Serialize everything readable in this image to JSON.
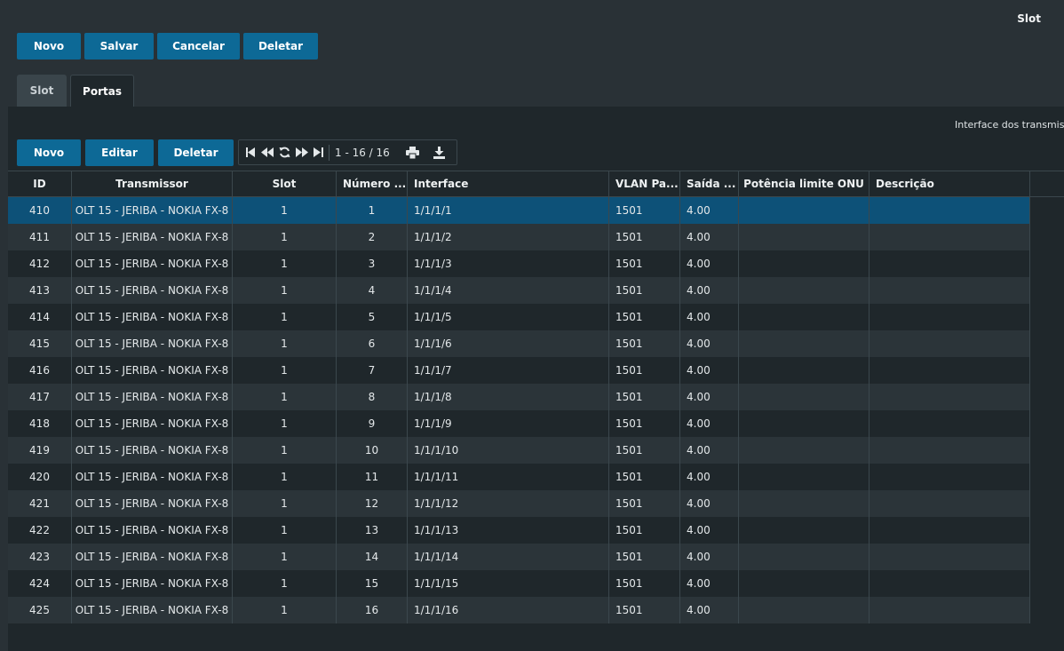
{
  "window": {
    "title": "Slot"
  },
  "toolbar": {
    "novo": "Novo",
    "salvar": "Salvar",
    "cancelar": "Cancelar",
    "deletar": "Deletar"
  },
  "tabs": [
    {
      "label": "Slot"
    },
    {
      "label": "Portas"
    }
  ],
  "hint": "Interface dos transmissores",
  "grid_toolbar": {
    "novo": "Novo",
    "editar": "Editar",
    "deletar": "Deletar"
  },
  "pager": {
    "status": "1 - 16 / 16",
    "icons": [
      "first-page-icon",
      "prev-page-icon",
      "refresh-icon",
      "next-page-icon",
      "last-page-icon",
      "print-icon",
      "download-icon"
    ]
  },
  "table": {
    "columns": [
      "ID",
      "Transmissor",
      "Slot",
      "Número ...",
      "Interface",
      "VLAN Pa...",
      "Saída ...",
      "Potência limite ONU",
      "Descrição"
    ],
    "rows": [
      [
        "410",
        "OLT 15 - JERIBA - NOKIA FX-8",
        "1",
        "1",
        "1/1/1/1",
        "1501",
        "4.00",
        "",
        ""
      ],
      [
        "411",
        "OLT 15 - JERIBA - NOKIA FX-8",
        "1",
        "2",
        "1/1/1/2",
        "1501",
        "4.00",
        "",
        ""
      ],
      [
        "412",
        "OLT 15 - JERIBA - NOKIA FX-8",
        "1",
        "3",
        "1/1/1/3",
        "1501",
        "4.00",
        "",
        ""
      ],
      [
        "413",
        "OLT 15 - JERIBA - NOKIA FX-8",
        "1",
        "4",
        "1/1/1/4",
        "1501",
        "4.00",
        "",
        ""
      ],
      [
        "414",
        "OLT 15 - JERIBA - NOKIA FX-8",
        "1",
        "5",
        "1/1/1/5",
        "1501",
        "4.00",
        "",
        ""
      ],
      [
        "415",
        "OLT 15 - JERIBA - NOKIA FX-8",
        "1",
        "6",
        "1/1/1/6",
        "1501",
        "4.00",
        "",
        ""
      ],
      [
        "416",
        "OLT 15 - JERIBA - NOKIA FX-8",
        "1",
        "7",
        "1/1/1/7",
        "1501",
        "4.00",
        "",
        ""
      ],
      [
        "417",
        "OLT 15 - JERIBA - NOKIA FX-8",
        "1",
        "8",
        "1/1/1/8",
        "1501",
        "4.00",
        "",
        ""
      ],
      [
        "418",
        "OLT 15 - JERIBA - NOKIA FX-8",
        "1",
        "9",
        "1/1/1/9",
        "1501",
        "4.00",
        "",
        ""
      ],
      [
        "419",
        "OLT 15 - JERIBA - NOKIA FX-8",
        "1",
        "10",
        "1/1/1/10",
        "1501",
        "4.00",
        "",
        ""
      ],
      [
        "420",
        "OLT 15 - JERIBA - NOKIA FX-8",
        "1",
        "11",
        "1/1/1/11",
        "1501",
        "4.00",
        "",
        ""
      ],
      [
        "421",
        "OLT 15 - JERIBA - NOKIA FX-8",
        "1",
        "12",
        "1/1/1/12",
        "1501",
        "4.00",
        "",
        ""
      ],
      [
        "422",
        "OLT 15 - JERIBA - NOKIA FX-8",
        "1",
        "13",
        "1/1/1/13",
        "1501",
        "4.00",
        "",
        ""
      ],
      [
        "423",
        "OLT 15 - JERIBA - NOKIA FX-8",
        "1",
        "14",
        "1/1/1/14",
        "1501",
        "4.00",
        "",
        ""
      ],
      [
        "424",
        "OLT 15 - JERIBA - NOKIA FX-8",
        "1",
        "15",
        "1/1/1/15",
        "1501",
        "4.00",
        "",
        ""
      ],
      [
        "425",
        "OLT 15 - JERIBA - NOKIA FX-8",
        "1",
        "16",
        "1/1/1/16",
        "1501",
        "4.00",
        "",
        ""
      ]
    ],
    "selected_row_id": "410"
  },
  "colors": {
    "accent": "#0d6996",
    "selected_row": "#0d5178",
    "background": "#293136",
    "panel": "#1f272b"
  }
}
